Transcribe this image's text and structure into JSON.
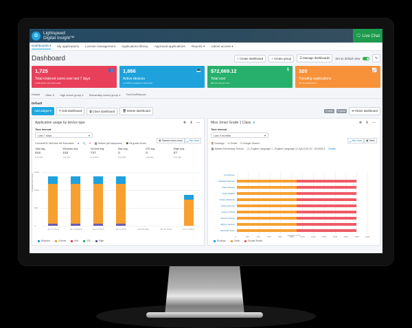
{
  "app": {
    "brand_line1": "Lightspeed",
    "brand_line2": "Digital Insight™",
    "live_chat": "🗨 Live Chat"
  },
  "nav": {
    "items": [
      "Dashboards ▾",
      "My applications",
      "License management",
      "Applications library",
      "Approved applications",
      "Reports ▾",
      "Admin access ▾"
    ]
  },
  "header": {
    "title": "Dashboard",
    "create_dashboard": "+ Create dashboard",
    "create_group": "+ Create group",
    "manage_dashboards": "☰ Manage dashboards",
    "default_view_label": "Set as default view",
    "refresh_icon": "↻"
  },
  "cards": [
    {
      "value": "1,725",
      "label": "Total rostered users over last 7 days",
      "sub": "1,608 active users this week",
      "icon": "👥",
      "color": "#e8405a"
    },
    {
      "value": "1,886",
      "label": "Active devices",
      "sub": "▲ 0.05% compared to last week",
      "icon": "💻",
      "color": "#1fa2dc"
    },
    {
      "value": "$72,669.12",
      "label": "Total cost",
      "sub": "$39.13 cost per user",
      "icon": "$",
      "color": "#27b06b"
    },
    {
      "value": "320",
      "label": "Trending applications",
      "sub": "40 new applications",
      "icon": "📈",
      "color": "#f7923a"
    }
  ],
  "group_tabs": [
    "Default",
    "Other ∨",
    "High school group ∨",
    "Elementary school group ∨",
    "TechToolPalooza"
  ],
  "dashboard": {
    "label": "Default",
    "add_widget": "Add widget ▾",
    "edit": "✎ Edit dashboard",
    "clone": "⧉ Clone dashboard",
    "delete": "🗑 Delete dashboard",
    "badge_edits": "0 edits",
    "badge_views": "0 views",
    "share": "➦ Share dashboard"
  },
  "left_panel": {
    "title": "Application usage by device type",
    "tools": "✚ ⬇ —",
    "time_interval_label": "Time interval",
    "time_interval_value": "Last 7 days",
    "view_stacked": "▤ Stacked area chart",
    "view_bar": "▁ Bar chart",
    "filter_app": "ConnectED: McGraw Hill Education",
    "filter_district": "🏛 District (all campuses)",
    "filter_grades": "🎓 All grade levels",
    "averages": [
      {
        "label": "Total avg.",
        "value": "916",
        "unit": "eng./day"
      },
      {
        "label": "Windows avg.",
        "value": "152",
        "unit": "eng./day"
      },
      {
        "label": "Chrome avg.",
        "value": "737",
        "unit": "eng./day"
      },
      {
        "label": "Mac avg.",
        "value": "0",
        "unit": "eng./day"
      },
      {
        "label": "iOS avg.",
        "value": "0",
        "unit": "eng./day"
      },
      {
        "label": "Edge avg.",
        "value": "27",
        "unit": "eng./day"
      }
    ]
  },
  "right_panel": {
    "title": "Miss Jones Grade 1 Class",
    "tools": "✚ ⬇ —",
    "time_interval_label": "Time interval",
    "time_interval_value": "Last 3 months",
    "view_bar": "▁ Bar chart",
    "view_table": "▦ Table",
    "apps": [
      "🦉 Duolingo",
      "✉ Gmail",
      "G Google Search"
    ],
    "school": "🏛 Adams Elementary School",
    "course": "📖 English Language 1 - English Language 12-3(A-F)19-20 - K01028.6",
    "details_link": "Details"
  },
  "chart_data": [
    {
      "type": "bar",
      "title": "Application usage by device type",
      "xlabel": "",
      "ylabel": "Engagements (avg.)",
      "ylim": [
        0,
        1500
      ],
      "yticks": [
        "0",
        "500",
        "1000",
        "1500"
      ],
      "categories": [
        "Jan 11 (Tue)",
        "Jan 12 (Wed)",
        "Jan 13 (Thu)",
        "Jan 14 (Fri)",
        "Jan 15 (Sat)",
        "Jan 16 (Sun)",
        "Jan 17 (Mon)"
      ],
      "stacked": true,
      "series": [
        {
          "name": "Windows",
          "color": "#1fa2dc",
          "values": [
            210,
            210,
            215,
            210,
            0,
            0,
            130
          ]
        },
        {
          "name": "Chrome",
          "color": "#f7a030",
          "values": [
            1120,
            1120,
            1120,
            1120,
            0,
            0,
            740
          ]
        },
        {
          "name": "Mac",
          "color": "#e8405a",
          "values": [
            0,
            0,
            0,
            0,
            0,
            0,
            0
          ]
        },
        {
          "name": "iOS",
          "color": "#27b06b",
          "values": [
            0,
            0,
            0,
            0,
            0,
            0,
            0
          ]
        },
        {
          "name": "Edge",
          "color": "#6b5bb5",
          "values": [
            50,
            50,
            50,
            50,
            0,
            0,
            0
          ]
        }
      ],
      "legend_position": "bottom",
      "grid": true
    },
    {
      "type": "bar",
      "orientation": "horizontal",
      "title": "Miss Jones Grade 1 Class",
      "xlabel": "Engagements",
      "ylabel": "",
      "xlim": [
        0,
        2400
      ],
      "xticks": [
        "0",
        "200",
        "400",
        "600",
        "800",
        "1000",
        "1200",
        "1400",
        "1600",
        "1800",
        "2000",
        "2200",
        "2400"
      ],
      "categories": [
        "Luna Brown",
        "Gabriella Marquez",
        "Aiden Rosario",
        "Averie Ballard",
        "Chase Steinbeck",
        "Ashley Fleming",
        "Jeremy O'Neill",
        "Harrison Reyes",
        "Jazlynn Skinner",
        "Zachariah Peter"
      ],
      "stacked": true,
      "series": [
        {
          "name": "Duolingo",
          "color": "#1fa2dc",
          "values": [
            0,
            0,
            0,
            0,
            0,
            0,
            0,
            0,
            0,
            0
          ]
        },
        {
          "name": "Gmail",
          "color": "#f7a030",
          "values": [
            0,
            1100,
            1100,
            1100,
            1100,
            1100,
            1100,
            1100,
            1100,
            1100
          ]
        },
        {
          "name": "Google Search",
          "color": "#f05a66",
          "values": [
            0,
            1100,
            1100,
            1100,
            1100,
            1100,
            1100,
            1100,
            1100,
            1100
          ]
        }
      ],
      "legend_position": "bottom",
      "grid": true
    }
  ]
}
